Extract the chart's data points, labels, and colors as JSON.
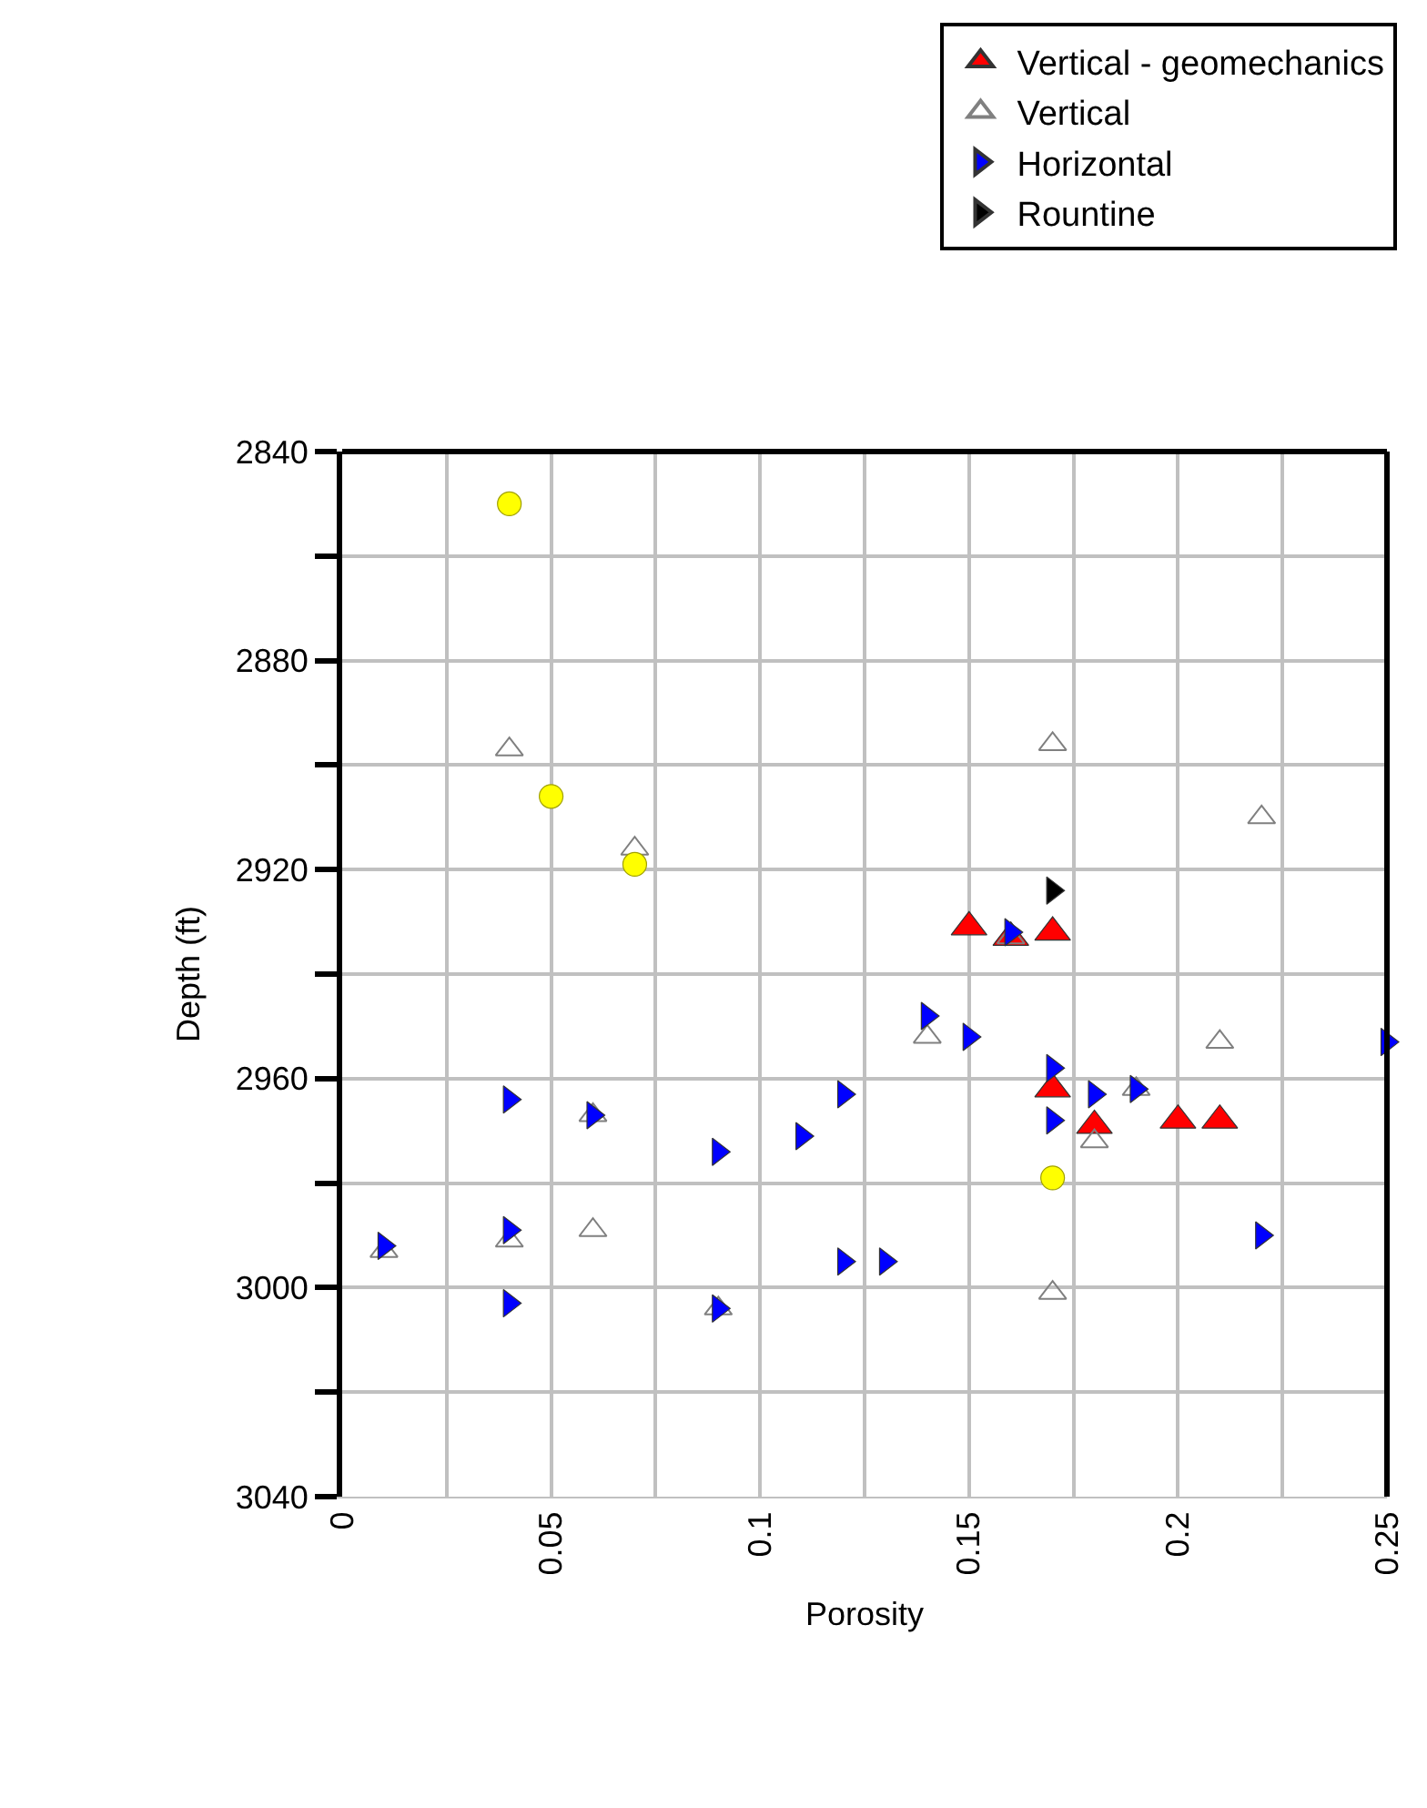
{
  "chart_data": {
    "type": "scatter",
    "xlabel": "Porosity",
    "ylabel": "Depth (ft)",
    "xlim": [
      0,
      0.25
    ],
    "ylim": [
      3040,
      2840
    ],
    "xticks": [
      0,
      {
        "value": 0.025,
        "label": null
      },
      0.05,
      {
        "value": 0.075,
        "label": null
      },
      0.1,
      {
        "value": 0.125,
        "label": null
      },
      0.15,
      {
        "value": 0.175,
        "label": null
      },
      0.2,
      {
        "value": 0.225,
        "label": null
      },
      0.25
    ],
    "yticks": [
      2840,
      {
        "value": 2860,
        "label": null
      },
      2880,
      {
        "value": 2900,
        "label": null
      },
      2920,
      {
        "value": 2940,
        "label": null
      },
      2960,
      {
        "value": 2980,
        "label": null
      },
      3000,
      {
        "value": 3020,
        "label": null
      },
      3040
    ],
    "grid": true,
    "legend": "top right",
    "series": [
      {
        "name": "Vertical - geomechanics",
        "color": "#ff0000",
        "marker": "triangle",
        "x": [
          0.15,
          0.16,
          0.17,
          0.17,
          0.18,
          0.2,
          0.21
        ],
        "values": [
          2931,
          2933,
          2932,
          2962,
          2969,
          2968,
          2968
        ]
      },
      {
        "name": "Vertical",
        "color": "#808080",
        "marker": "triangle-open",
        "x": [
          0.04,
          0.17,
          0.22,
          0.07,
          0.16,
          0.14,
          0.21,
          0.18,
          0.19,
          0.17,
          0.06,
          0.01,
          0.04,
          0.06,
          0.17,
          0.09
        ],
        "values": [
          2897,
          2896,
          2910,
          2916,
          2933,
          2952,
          2953,
          2972,
          2962,
          null,
          2967,
          2993,
          2991,
          2989,
          3001,
          3004
        ]
      },
      {
        "name": "Horizontal",
        "color": "#0000ff",
        "marker": "triangle-right",
        "x": [
          0.04,
          0.06,
          0.09,
          0.11,
          0.12,
          0.14,
          0.15,
          0.16,
          0.17,
          0.17,
          0.18,
          0.19,
          0.25,
          0.22,
          0.01,
          0.04,
          0.04,
          0.12,
          0.13,
          0.09
        ],
        "values": [
          2964,
          2967,
          2974,
          2971,
          2963,
          2948,
          2952,
          2932,
          2958,
          2968,
          2963,
          2962,
          2953,
          2990,
          2992,
          2989,
          3003,
          2995,
          2995,
          3004
        ]
      },
      {
        "name": "Rountine",
        "color": "#000000",
        "marker": "triangle-right",
        "x": [
          0.17
        ],
        "values": [
          2924
        ]
      },
      {
        "color": "#ffff00",
        "marker": "circle",
        "x": [
          0.04,
          0.05,
          0.07,
          0.17
        ],
        "values": [
          2850,
          2906,
          2919,
          2979
        ]
      }
    ]
  }
}
